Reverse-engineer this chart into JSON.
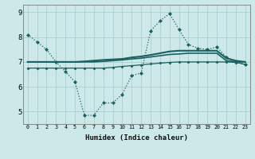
{
  "xlabel": "Humidex (Indice chaleur)",
  "background_color": "#cce8e8",
  "grid_color": "#aacfcf",
  "line_color": "#1a6060",
  "xlim": [
    -0.5,
    23.5
  ],
  "ylim": [
    4.5,
    9.3
  ],
  "xticks": [
    0,
    1,
    2,
    3,
    4,
    5,
    6,
    7,
    8,
    9,
    10,
    11,
    12,
    13,
    14,
    15,
    16,
    17,
    18,
    19,
    20,
    21,
    22,
    23
  ],
  "yticks": [
    5,
    6,
    7,
    8,
    9
  ],
  "series": {
    "line1_dotted": {
      "x": [
        0,
        1,
        2,
        3,
        4,
        5,
        6,
        7,
        8,
        9,
        10,
        11,
        12,
        13,
        14,
        15,
        16,
        17,
        18,
        19,
        20,
        21,
        22,
        23
      ],
      "y": [
        8.1,
        7.8,
        7.5,
        7.0,
        6.6,
        6.2,
        4.85,
        4.85,
        5.35,
        5.35,
        5.7,
        6.45,
        6.55,
        8.25,
        8.65,
        8.95,
        8.3,
        7.7,
        7.55,
        7.5,
        7.6,
        7.2,
        7.0,
        6.9
      ]
    },
    "line2_flat_upper": {
      "x": [
        0,
        1,
        2,
        3,
        4,
        5,
        6,
        7,
        8,
        9,
        10,
        11,
        12,
        13,
        14,
        15,
        16,
        17,
        18,
        19,
        20,
        21,
        22,
        23
      ],
      "y": [
        7.0,
        7.0,
        7.0,
        7.0,
        7.0,
        7.0,
        7.02,
        7.05,
        7.08,
        7.1,
        7.12,
        7.18,
        7.22,
        7.28,
        7.35,
        7.42,
        7.45,
        7.45,
        7.45,
        7.45,
        7.45,
        7.15,
        7.05,
        7.0
      ]
    },
    "line3_flat_mid": {
      "x": [
        0,
        1,
        2,
        3,
        4,
        5,
        6,
        7,
        8,
        9,
        10,
        11,
        12,
        13,
        14,
        15,
        16,
        17,
        18,
        19,
        20,
        21,
        22,
        23
      ],
      "y": [
        7.0,
        7.0,
        7.0,
        7.0,
        7.0,
        7.0,
        7.0,
        7.0,
        7.02,
        7.05,
        7.08,
        7.12,
        7.15,
        7.2,
        7.25,
        7.3,
        7.32,
        7.35,
        7.35,
        7.35,
        7.35,
        7.05,
        7.0,
        7.0
      ]
    },
    "line4_flat_lower": {
      "x": [
        0,
        1,
        2,
        3,
        4,
        5,
        6,
        7,
        8,
        9,
        10,
        11,
        12,
        13,
        14,
        15,
        16,
        17,
        18,
        19,
        20,
        21,
        22,
        23
      ],
      "y": [
        6.75,
        6.75,
        6.75,
        6.75,
        6.75,
        6.75,
        6.75,
        6.75,
        6.75,
        6.78,
        6.82,
        6.85,
        6.88,
        6.92,
        6.95,
        6.98,
        7.0,
        7.0,
        7.0,
        7.0,
        7.0,
        7.0,
        6.98,
        6.9
      ]
    }
  }
}
